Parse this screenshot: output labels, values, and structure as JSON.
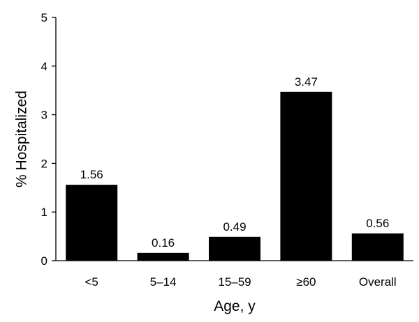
{
  "chart_data": {
    "type": "bar",
    "title": "",
    "xlabel": "Age, y",
    "ylabel": "% Hospitalized",
    "ylim": [
      0,
      5
    ],
    "yticks": [
      0,
      1,
      2,
      3,
      4,
      5
    ],
    "categories": [
      "<5",
      "5–14",
      "15–59",
      "≥60",
      "Overall"
    ],
    "values": [
      1.56,
      0.16,
      0.49,
      3.47,
      0.56
    ],
    "data_labels": [
      "1.56",
      "0.16",
      "0.49",
      "3.47",
      "0.56"
    ],
    "grid": false,
    "legend": "none",
    "bar_color": "#000000"
  }
}
